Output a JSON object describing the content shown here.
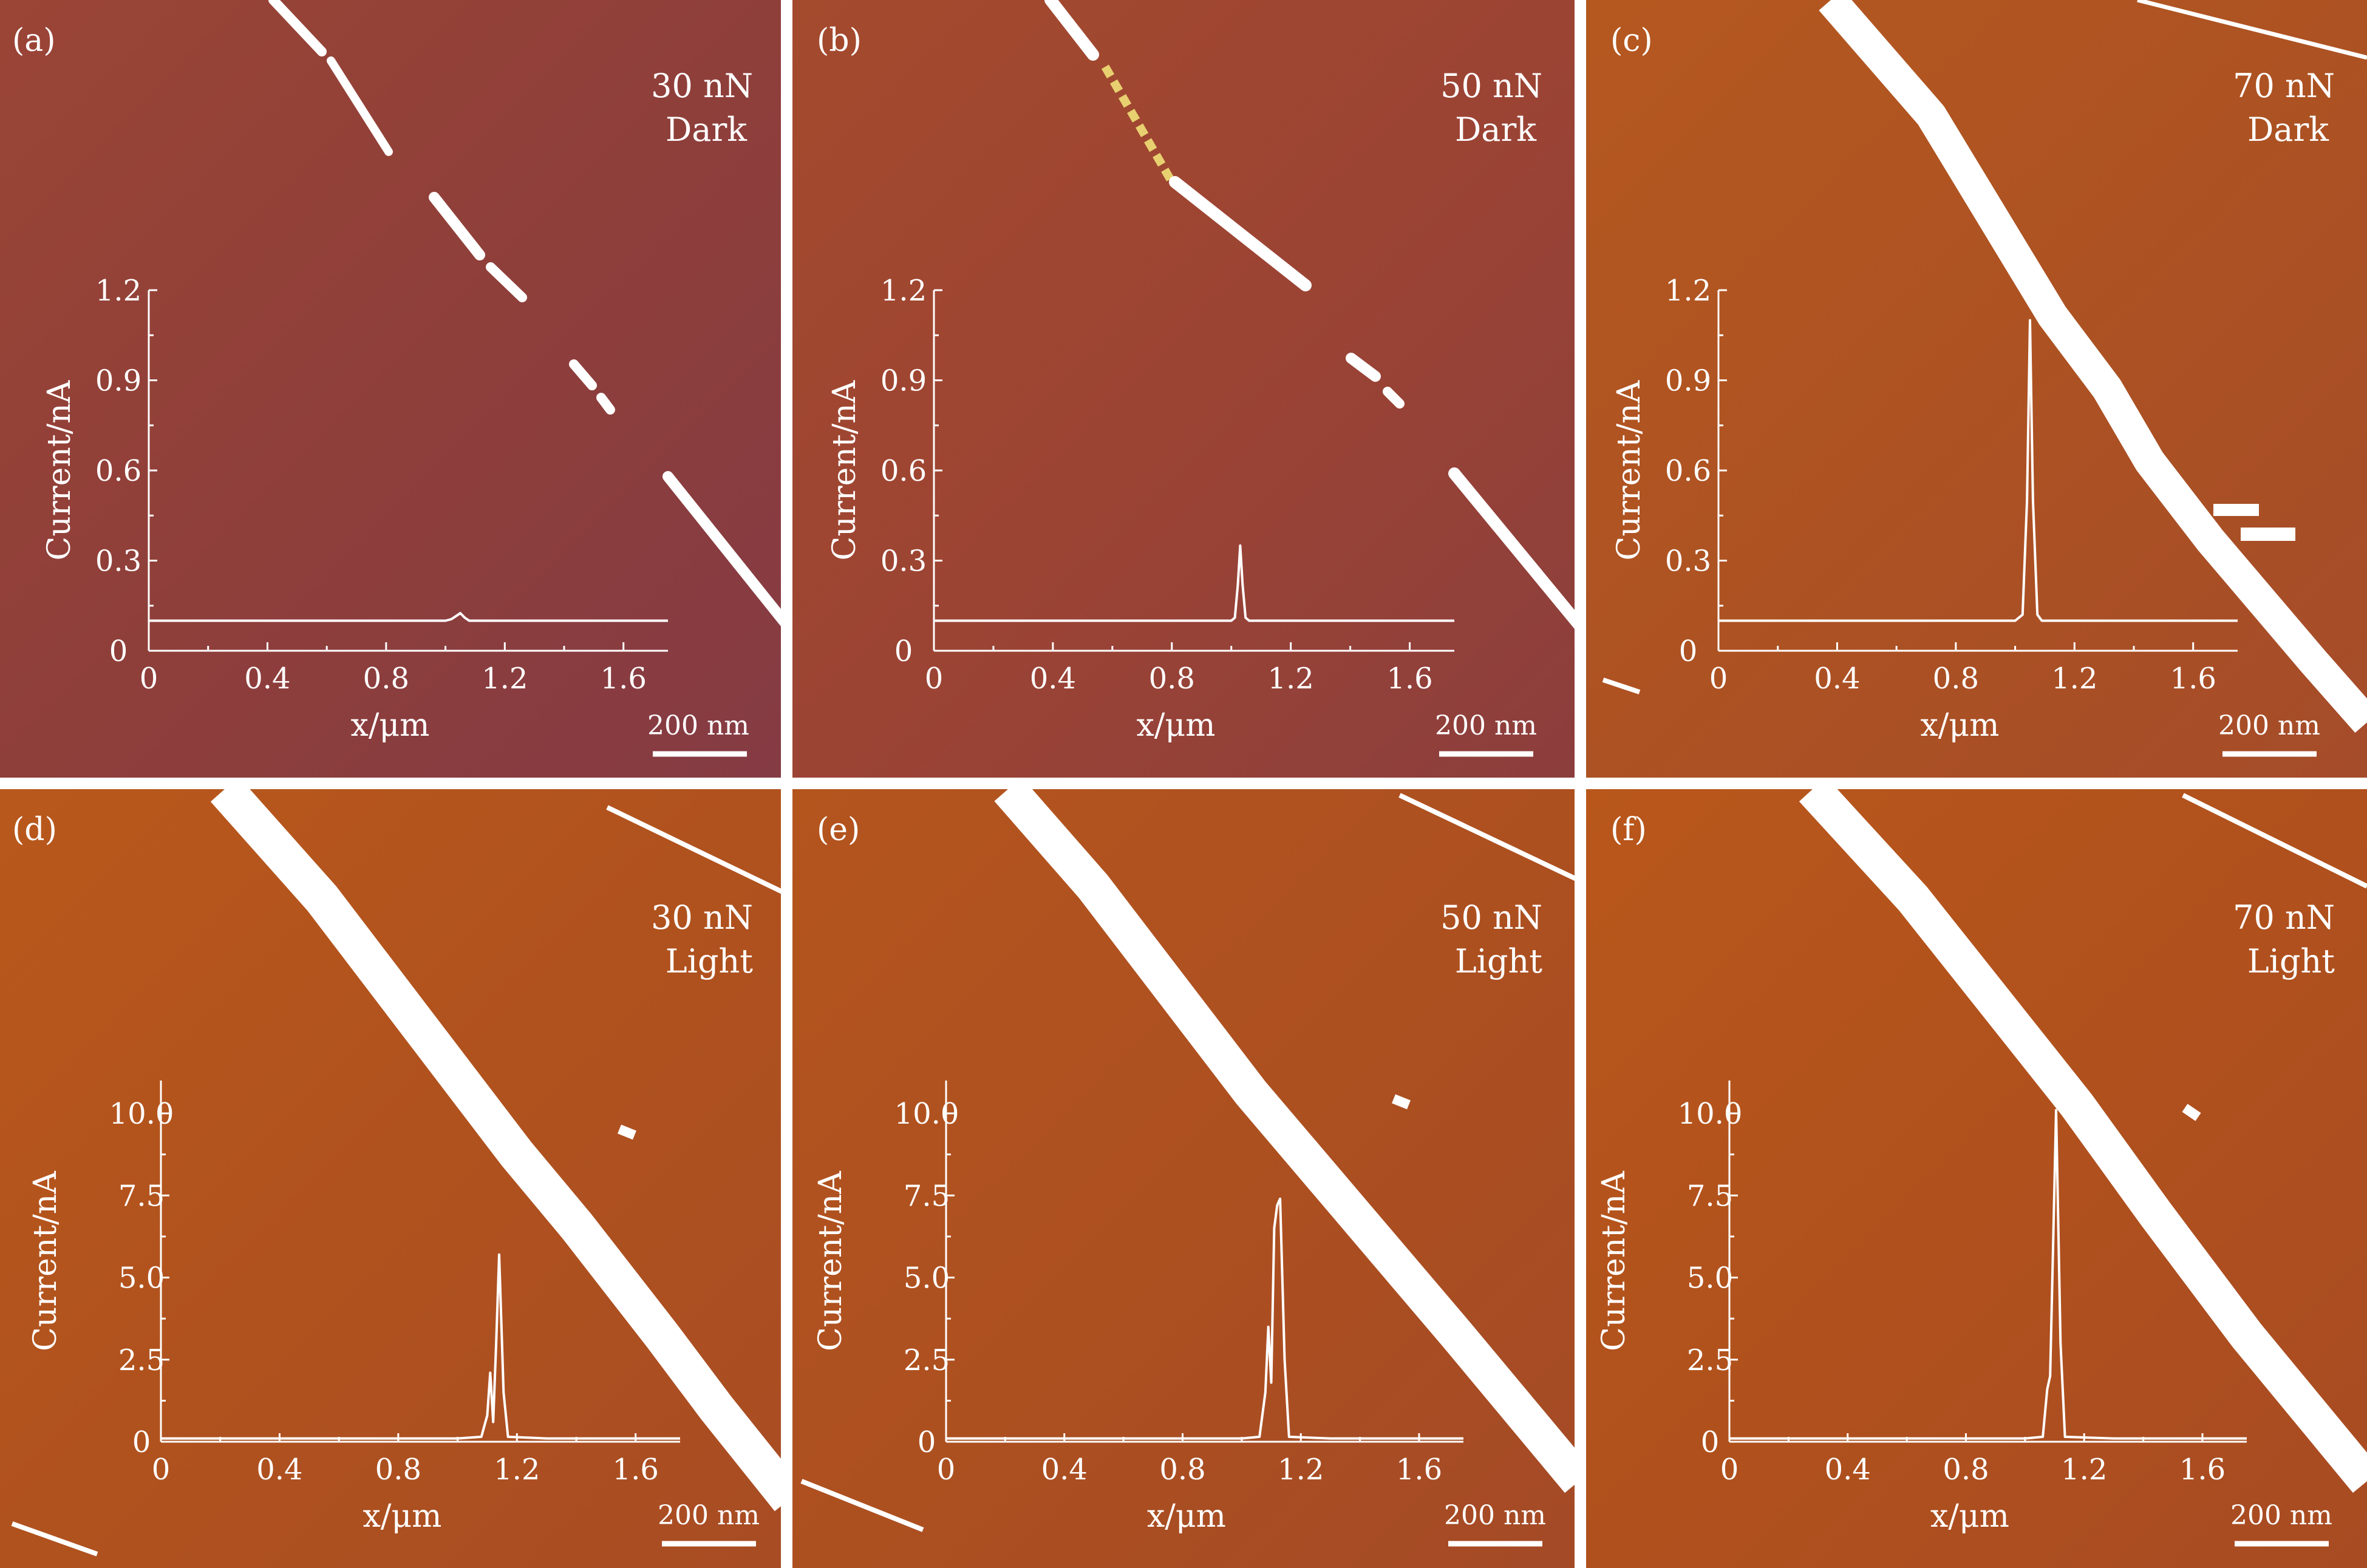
{
  "chart_data": [
    {
      "type": "line",
      "panel_label": "(a)",
      "condition": [
        "30 nN",
        "Dark"
      ],
      "xlabel": "x/μm",
      "ylabel": "Current/nA",
      "xlim": [
        0,
        1.75
      ],
      "ylim": [
        0,
        1.2
      ],
      "xticks": [
        "0",
        "0.4",
        "0.8",
        "1.2",
        "1.6"
      ],
      "yticks": [
        "0",
        "0.3",
        "0.6",
        "0.9",
        "1.2"
      ],
      "scale_bar": "200 nm",
      "x": [
        0,
        0.5,
        1.0,
        1.02,
        1.035,
        1.05,
        1.065,
        1.08,
        1.1,
        1.3,
        1.75
      ],
      "y": [
        0.1,
        0.1,
        0.1,
        0.105,
        0.115,
        0.125,
        0.11,
        0.1,
        0.1,
        0.1,
        0.1
      ]
    },
    {
      "type": "line",
      "panel_label": "(b)",
      "condition": [
        "50 nN",
        "Dark"
      ],
      "xlabel": "x/μm",
      "ylabel": "Current/nA",
      "xlim": [
        0,
        1.75
      ],
      "ylim": [
        0,
        1.2
      ],
      "xticks": [
        "0",
        "0.4",
        "0.8",
        "1.2",
        "1.6"
      ],
      "yticks": [
        "0",
        "0.3",
        "0.6",
        "0.9",
        "1.2"
      ],
      "scale_bar": "200 nm",
      "x": [
        0,
        0.5,
        1.0,
        1.012,
        1.022,
        1.03,
        1.038,
        1.048,
        1.06,
        1.3,
        1.75
      ],
      "y": [
        0.1,
        0.1,
        0.1,
        0.11,
        0.22,
        0.35,
        0.22,
        0.11,
        0.1,
        0.1,
        0.1
      ]
    },
    {
      "type": "line",
      "panel_label": "(c)",
      "condition": [
        "70 nN",
        "Dark"
      ],
      "xlabel": "x/μm",
      "ylabel": "Current/nA",
      "xlim": [
        0,
        1.75
      ],
      "ylim": [
        0,
        1.2
      ],
      "xticks": [
        "0",
        "0.4",
        "0.8",
        "1.2",
        "1.6"
      ],
      "yticks": [
        "0",
        "0.3",
        "0.6",
        "0.9",
        "1.2"
      ],
      "scale_bar": "200 nm",
      "x": [
        0,
        0.5,
        1.0,
        1.025,
        1.04,
        1.05,
        1.06,
        1.075,
        1.09,
        1.3,
        1.75
      ],
      "y": [
        0.1,
        0.1,
        0.1,
        0.12,
        0.5,
        1.1,
        0.5,
        0.12,
        0.1,
        0.1,
        0.1
      ]
    },
    {
      "type": "line",
      "panel_label": "(d)",
      "condition": [
        "30 nN",
        "Light"
      ],
      "xlabel": "x/μm",
      "ylabel": "Current/nA",
      "xlim": [
        0,
        1.75
      ],
      "ylim": [
        0,
        11
      ],
      "xticks": [
        "0",
        "0.4",
        "0.8",
        "1.2",
        "1.6"
      ],
      "yticks": [
        "0",
        "2.5",
        "5.0",
        "7.5",
        "10.0"
      ],
      "scale_bar": "200 nm",
      "x": [
        0,
        0.5,
        1.0,
        1.08,
        1.1,
        1.11,
        1.12,
        1.13,
        1.14,
        1.155,
        1.17,
        1.3,
        1.75
      ],
      "y": [
        0.1,
        0.1,
        0.1,
        0.15,
        0.8,
        2.1,
        0.6,
        3.0,
        5.7,
        1.5,
        0.15,
        0.1,
        0.1
      ]
    },
    {
      "type": "line",
      "panel_label": "(e)",
      "condition": [
        "50 nN",
        "Light"
      ],
      "xlabel": "x/μm",
      "ylabel": "Current/nA",
      "xlim": [
        0,
        1.75
      ],
      "ylim": [
        0,
        11
      ],
      "xticks": [
        "0",
        "0.4",
        "0.8",
        "1.2",
        "1.6"
      ],
      "yticks": [
        "0",
        "2.5",
        "5.0",
        "7.5",
        "10.0"
      ],
      "scale_bar": "200 nm",
      "x": [
        0,
        0.5,
        1.0,
        1.06,
        1.08,
        1.09,
        1.1,
        1.11,
        1.12,
        1.13,
        1.145,
        1.16,
        1.3,
        1.75
      ],
      "y": [
        0.1,
        0.1,
        0.1,
        0.15,
        1.5,
        3.5,
        1.8,
        6.5,
        7.2,
        7.4,
        2.5,
        0.15,
        0.1,
        0.1
      ]
    },
    {
      "type": "line",
      "panel_label": "(f)",
      "condition": [
        "70 nN",
        "Light"
      ],
      "xlabel": "x/μm",
      "ylabel": "Current/nA",
      "xlim": [
        0,
        1.75
      ],
      "ylim": [
        0,
        11
      ],
      "xticks": [
        "0",
        "0.4",
        "0.8",
        "1.2",
        "1.6"
      ],
      "yticks": [
        "0",
        "2.5",
        "5.0",
        "7.5",
        "10.0"
      ],
      "scale_bar": "200 nm",
      "x": [
        0,
        0.5,
        1.0,
        1.06,
        1.075,
        1.085,
        1.095,
        1.105,
        1.12,
        1.135,
        1.3,
        1.75
      ],
      "y": [
        0.1,
        0.1,
        0.1,
        0.15,
        1.6,
        2.0,
        6.0,
        10.1,
        3.0,
        0.15,
        0.1,
        0.1
      ]
    }
  ]
}
